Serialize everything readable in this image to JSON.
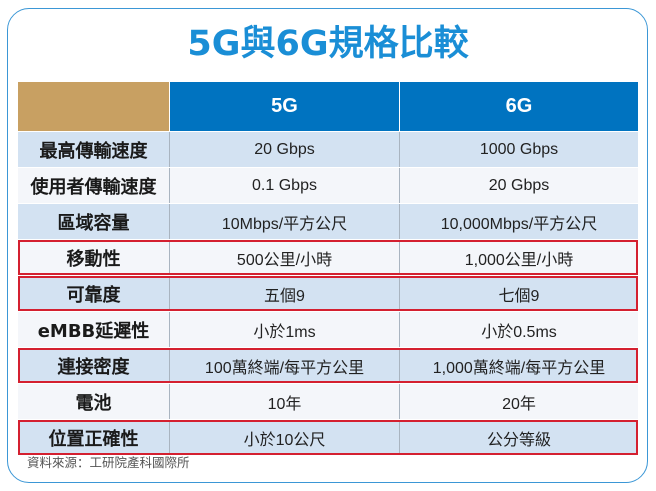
{
  "title": "5G與6G規格比較",
  "colors": {
    "title": "#1a8ed6",
    "frame_border": "#3b97d6",
    "header_corner": "#c8a062",
    "header_bg": "#0073c0",
    "row_alt_blue": "#d3e2f2",
    "row_alt_white": "#f4f6fa",
    "highlight_border": "#d42030"
  },
  "table": {
    "headers": [
      "",
      "5G",
      "6G"
    ],
    "rows": [
      {
        "label": "最高傳輸速度",
        "g5": "20 Gbps",
        "g6": "1000 Gbps",
        "highlighted": false
      },
      {
        "label": "使用者傳輸速度",
        "g5": "0.1 Gbps",
        "g6": "20 Gbps",
        "highlighted": false
      },
      {
        "label": "區域容量",
        "g5": "10Mbps/平方公尺",
        "g6": "10,000Mbps/平方公尺",
        "highlighted": false
      },
      {
        "label": "移動性",
        "g5": "500公里/小時",
        "g6": "1,000公里/小時",
        "highlighted": true
      },
      {
        "label": "可靠度",
        "g5": "五個9",
        "g6": "七個9",
        "highlighted": true
      },
      {
        "label": "eMBB延遲性",
        "g5": "小於1ms",
        "g6": "小於0.5ms",
        "highlighted": false
      },
      {
        "label": "連接密度",
        "g5": "100萬終端/每平方公里",
        "g6": "1,000萬終端/每平方公里",
        "highlighted": true
      },
      {
        "label": "電池",
        "g5": "10年",
        "g6": "20年",
        "highlighted": false
      },
      {
        "label": "位置正確性",
        "g5": "小於10公尺",
        "g6": "公分等級",
        "highlighted": true
      }
    ]
  },
  "source": "資料來源：工研院產科國際所"
}
